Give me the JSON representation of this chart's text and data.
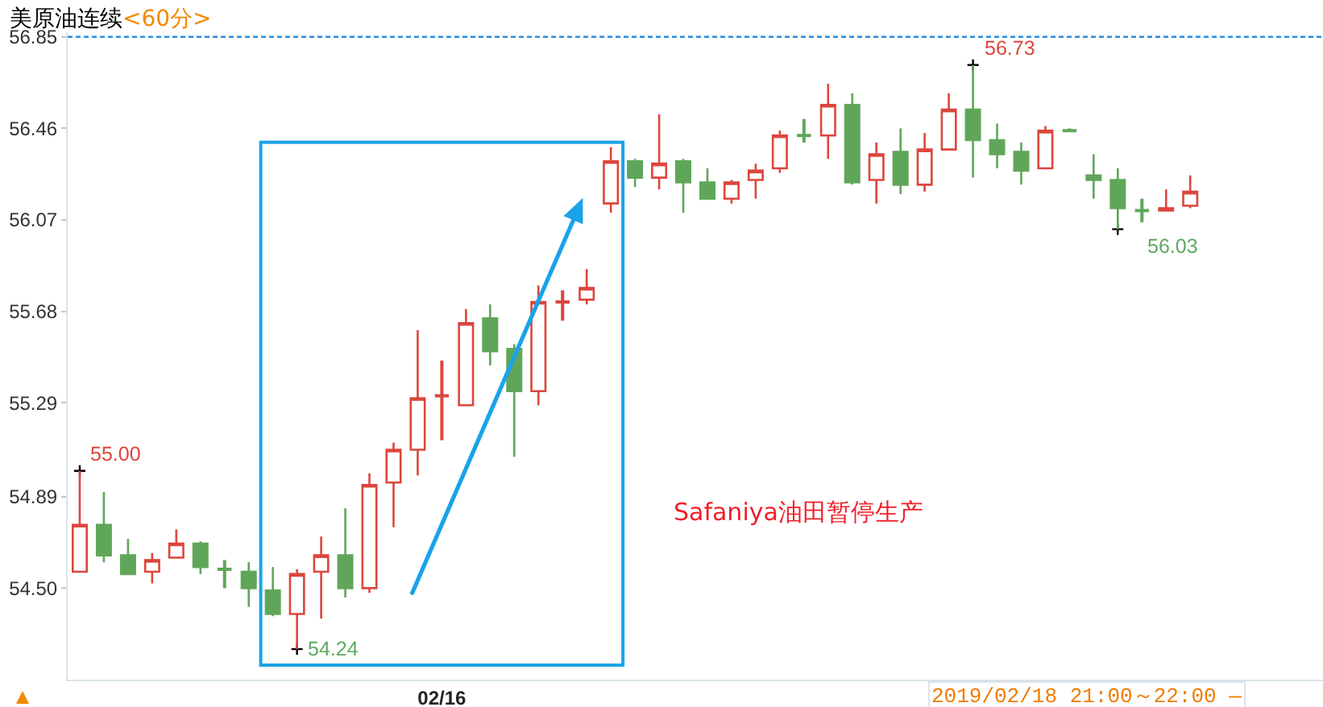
{
  "chart_data": {
    "type": "candlestick",
    "title": "美原油连续",
    "subtitle": "<60分>",
    "categories": [
      null,
      null,
      null,
      null,
      null,
      null,
      null,
      null,
      null,
      null,
      null,
      null,
      null,
      null,
      null,
      "02/16",
      null,
      null,
      null,
      null,
      null,
      null,
      null,
      null,
      null,
      null,
      null,
      null,
      null,
      null,
      null,
      null,
      null,
      null,
      null,
      null,
      null,
      null,
      null,
      null,
      null,
      null,
      null,
      null,
      null,
      null,
      null,
      null,
      null,
      null,
      null,
      null
    ],
    "ohlc": [
      [
        54.57,
        55.0,
        54.57,
        54.77
      ],
      [
        54.77,
        54.91,
        54.61,
        54.64
      ],
      [
        54.64,
        54.71,
        54.56,
        54.56
      ],
      [
        54.57,
        54.65,
        54.52,
        54.62
      ],
      [
        54.63,
        54.75,
        54.63,
        54.69
      ],
      [
        54.69,
        54.7,
        54.56,
        54.59
      ],
      [
        54.58,
        54.62,
        54.5,
        54.58
      ],
      [
        54.57,
        54.61,
        54.42,
        54.5
      ],
      [
        54.49,
        54.59,
        54.38,
        54.39
      ],
      [
        54.39,
        54.58,
        54.24,
        54.56
      ],
      [
        54.57,
        54.72,
        54.37,
        54.64
      ],
      [
        54.64,
        54.84,
        54.46,
        54.5
      ],
      [
        54.5,
        54.99,
        54.48,
        54.94
      ],
      [
        54.95,
        55.12,
        54.76,
        55.09
      ],
      [
        55.09,
        55.6,
        54.98,
        55.31
      ],
      [
        55.32,
        55.47,
        55.13,
        55.32
      ],
      [
        55.28,
        55.69,
        55.28,
        55.63
      ],
      [
        55.65,
        55.71,
        55.45,
        55.51
      ],
      [
        55.52,
        55.54,
        55.06,
        55.34
      ],
      [
        55.34,
        55.79,
        55.28,
        55.72
      ],
      [
        55.72,
        55.77,
        55.64,
        55.72
      ],
      [
        55.73,
        55.86,
        55.71,
        55.78
      ],
      [
        56.14,
        56.38,
        56.1,
        56.32
      ],
      [
        56.32,
        56.33,
        56.21,
        56.25
      ],
      [
        56.25,
        56.52,
        56.2,
        56.31
      ],
      [
        56.32,
        56.33,
        56.1,
        56.23
      ],
      [
        56.23,
        56.29,
        56.16,
        56.16
      ],
      [
        56.16,
        56.24,
        56.14,
        56.23
      ],
      [
        56.24,
        56.31,
        56.16,
        56.28
      ],
      [
        56.29,
        56.45,
        56.27,
        56.43
      ],
      [
        56.43,
        56.5,
        56.4,
        56.43
      ],
      [
        56.43,
        56.65,
        56.33,
        56.56
      ],
      [
        56.56,
        56.61,
        56.22,
        56.23
      ],
      [
        56.24,
        56.4,
        56.14,
        56.35
      ],
      [
        56.36,
        56.46,
        56.18,
        56.22
      ],
      [
        56.22,
        56.44,
        56.19,
        56.37
      ],
      [
        56.37,
        56.61,
        56.37,
        56.54
      ],
      [
        56.54,
        56.73,
        56.25,
        56.41
      ],
      [
        56.41,
        56.48,
        56.29,
        56.35
      ],
      [
        56.36,
        56.4,
        56.22,
        56.28
      ],
      [
        56.29,
        56.47,
        56.29,
        56.45
      ],
      [
        56.45,
        56.46,
        56.45,
        56.45
      ],
      [
        56.26,
        56.35,
        56.16,
        56.24
      ],
      [
        56.24,
        56.29,
        56.03,
        56.12
      ],
      [
        56.11,
        56.16,
        56.06,
        56.11
      ],
      [
        56.11,
        56.2,
        56.11,
        56.12
      ],
      [
        56.13,
        56.26,
        56.12,
        56.19
      ],
      null,
      null,
      null,
      null,
      null
    ],
    "colors": [
      "#dc463c",
      "#60a65a",
      "#60a65a",
      "#dc463c",
      "#dc463c",
      "#60a65a",
      "#60a65a",
      "#60a65a",
      "#60a65a",
      "#dc463c",
      "#dc463c",
      "#60a65a",
      "#dc463c",
      "#dc463c",
      "#dc463c",
      "#dc463c",
      "#dc463c",
      "#60a65a",
      "#60a65a",
      "#dc463c",
      "#dc463c",
      "#dc463c",
      "#dc463c",
      "#60a65a",
      "#dc463c",
      "#60a65a",
      "#60a65a",
      "#dc463c",
      "#dc463c",
      "#dc463c",
      "#60a65a",
      "#dc463c",
      "#60a65a",
      "#dc463c",
      "#60a65a",
      "#dc463c",
      "#dc463c",
      "#60a65a",
      "#60a65a",
      "#60a65a",
      "#dc463c",
      "#60a65a",
      "#60a65a",
      "#60a65a",
      "#60a65a",
      "#dc463c",
      "#dc463c",
      null,
      null,
      null,
      null,
      null
    ],
    "ylim": [
      54.11,
      56.87
    ],
    "yticks": [
      {
        "value": 54.5,
        "label": "54.50"
      },
      54.89,
      55.29,
      55.68,
      56.07,
      56.46,
      56.85
    ],
    "ref_lines": [
      {
        "axis": "y",
        "value": 56.85,
        "color": "#2b8de0",
        "line_style": "dashed"
      }
    ],
    "annotations": [
      "55.00",
      "54.24",
      "56.73",
      "56.03",
      "Safaniya油田暂停生产",
      "2019/02/18 21:00～22:00 —"
    ]
  }
}
